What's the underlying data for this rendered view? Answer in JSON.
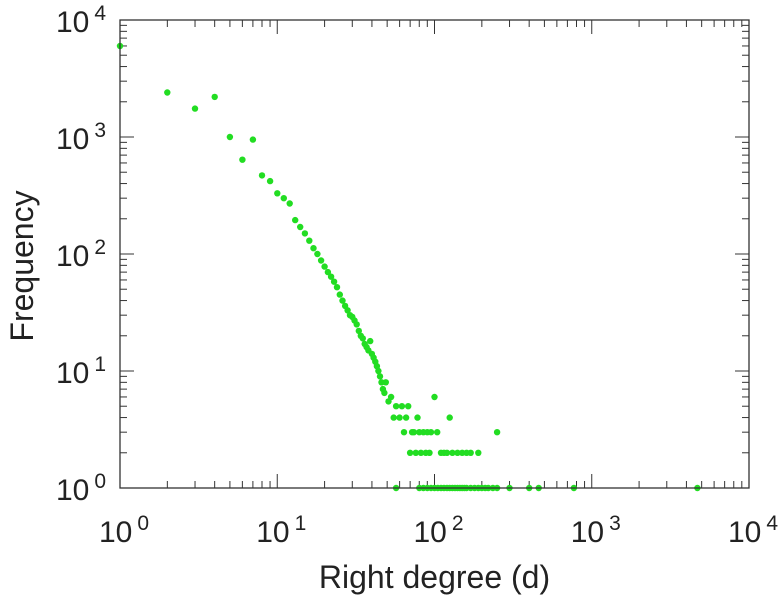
{
  "chart_data": {
    "type": "scatter",
    "xlabel": "Right degree (d)",
    "ylabel": "Frequency",
    "x_scale": "log",
    "y_scale": "log",
    "xlim": [
      1,
      10000
    ],
    "ylim": [
      1,
      10000
    ],
    "x_ticks": [
      {
        "value": 1,
        "base": "10",
        "exp": "0"
      },
      {
        "value": 10,
        "base": "10",
        "exp": "1"
      },
      {
        "value": 100,
        "base": "10",
        "exp": "2"
      },
      {
        "value": 1000,
        "base": "10",
        "exp": "3"
      },
      {
        "value": 10000,
        "base": "10",
        "exp": "4"
      }
    ],
    "y_ticks": [
      {
        "value": 1,
        "base": "10",
        "exp": "0"
      },
      {
        "value": 10,
        "base": "10",
        "exp": "1"
      },
      {
        "value": 100,
        "base": "10",
        "exp": "2"
      },
      {
        "value": 1000,
        "base": "10",
        "exp": "3"
      },
      {
        "value": 10000,
        "base": "10",
        "exp": "4"
      }
    ],
    "grid": false,
    "marker_color": "#22dd22",
    "series": [
      {
        "points": [
          [
            1,
            6000
          ],
          [
            2,
            2400
          ],
          [
            3,
            1750
          ],
          [
            4,
            2200
          ],
          [
            5,
            1000
          ],
          [
            6,
            640
          ],
          [
            7,
            950
          ],
          [
            8,
            470
          ],
          [
            9,
            420
          ],
          [
            10,
            330
          ],
          [
            11,
            300
          ],
          [
            12,
            270
          ],
          [
            13,
            195
          ],
          [
            14,
            170
          ],
          [
            15,
            150
          ],
          [
            16,
            130
          ],
          [
            17,
            112
          ],
          [
            18,
            100
          ],
          [
            19,
            88
          ],
          [
            20,
            78
          ],
          [
            21,
            70
          ],
          [
            22,
            64
          ],
          [
            23,
            58
          ],
          [
            24,
            52
          ],
          [
            25,
            45
          ],
          [
            26,
            40
          ],
          [
            27,
            36
          ],
          [
            28,
            33
          ],
          [
            29,
            30
          ],
          [
            30,
            29
          ],
          [
            31,
            27
          ],
          [
            32,
            25
          ],
          [
            33,
            22
          ],
          [
            34,
            20
          ],
          [
            35,
            19
          ],
          [
            36,
            17
          ],
          [
            37,
            16
          ],
          [
            38,
            15
          ],
          [
            39,
            18
          ],
          [
            40,
            14
          ],
          [
            41,
            13
          ],
          [
            42,
            12
          ],
          [
            43,
            11
          ],
          [
            44,
            10
          ],
          [
            45,
            9
          ],
          [
            46,
            8
          ],
          [
            47,
            7
          ],
          [
            48,
            6.5
          ],
          [
            49,
            8
          ],
          [
            51,
            5.5
          ],
          [
            53,
            6
          ],
          [
            55,
            4
          ],
          [
            57,
            5
          ],
          [
            60,
            4
          ],
          [
            62,
            5
          ],
          [
            64,
            3
          ],
          [
            66,
            4
          ],
          [
            68,
            5
          ],
          [
            70,
            2
          ],
          [
            72,
            3
          ],
          [
            74,
            3
          ],
          [
            76,
            2
          ],
          [
            78,
            4
          ],
          [
            80,
            3
          ],
          [
            82,
            2
          ],
          [
            85,
            3
          ],
          [
            88,
            2
          ],
          [
            90,
            3
          ],
          [
            93,
            2
          ],
          [
            95,
            3
          ],
          [
            100,
            6
          ],
          [
            104,
            3
          ],
          [
            110,
            2
          ],
          [
            115,
            2
          ],
          [
            120,
            2
          ],
          [
            125,
            4
          ],
          [
            130,
            2
          ],
          [
            140,
            2
          ],
          [
            150,
            2
          ],
          [
            160,
            2
          ],
          [
            170,
            2
          ],
          [
            190,
            2
          ],
          [
            250,
            3
          ],
          [
            57,
            1
          ],
          [
            80,
            1
          ],
          [
            85,
            1
          ],
          [
            90,
            1
          ],
          [
            95,
            1
          ],
          [
            100,
            1
          ],
          [
            105,
            1
          ],
          [
            110,
            1
          ],
          [
            115,
            1
          ],
          [
            120,
            1
          ],
          [
            125,
            1
          ],
          [
            130,
            1
          ],
          [
            135,
            1
          ],
          [
            140,
            1
          ],
          [
            145,
            1
          ],
          [
            150,
            1
          ],
          [
            155,
            1
          ],
          [
            160,
            1
          ],
          [
            170,
            1
          ],
          [
            180,
            1
          ],
          [
            190,
            1
          ],
          [
            200,
            1
          ],
          [
            210,
            1
          ],
          [
            220,
            1
          ],
          [
            235,
            1
          ],
          [
            250,
            1
          ],
          [
            300,
            1
          ],
          [
            400,
            1
          ],
          [
            460,
            1
          ],
          [
            770,
            1
          ],
          [
            4700,
            1
          ]
        ]
      }
    ]
  }
}
